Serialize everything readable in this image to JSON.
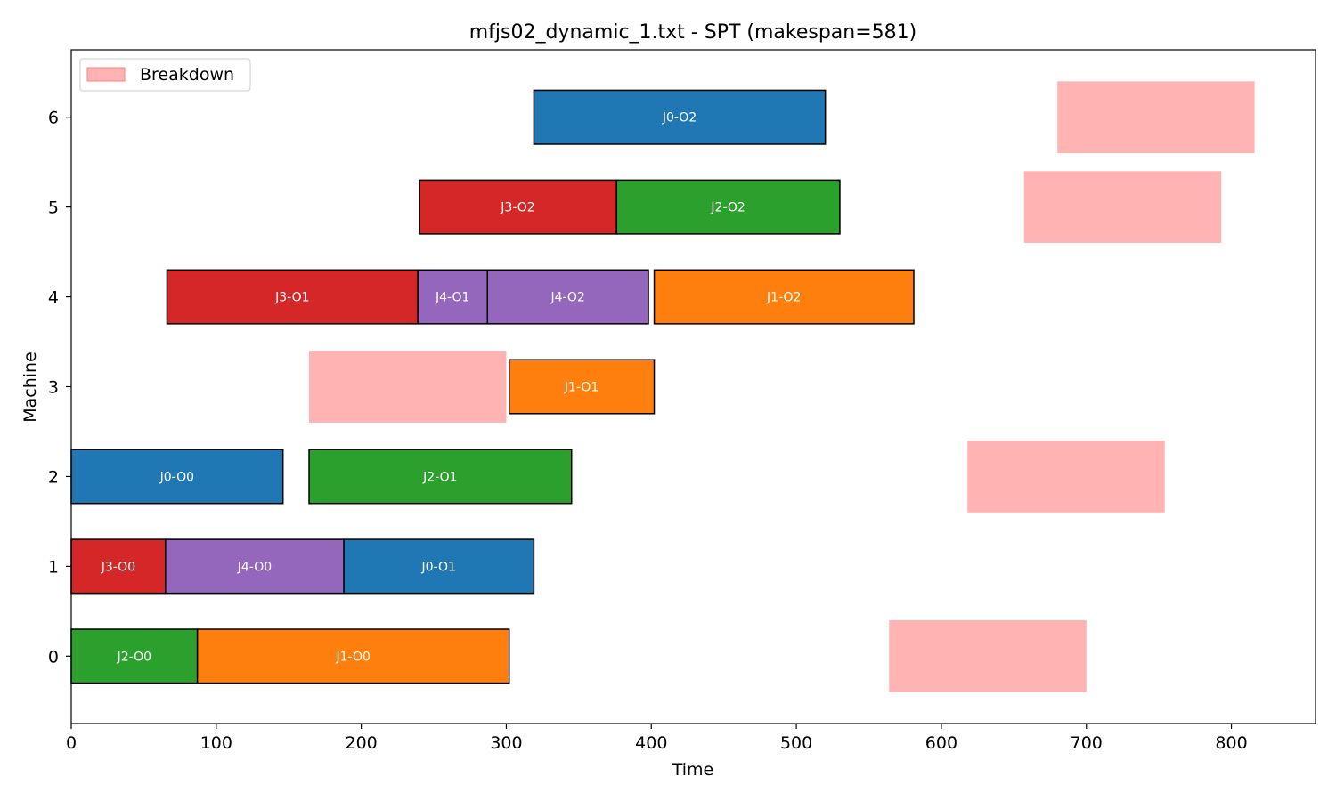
{
  "chart_data": {
    "type": "gantt",
    "title": "mfjs02_dynamic_1.txt - SPT (makespan=581)",
    "xlabel": "Time",
    "ylabel": "Machine",
    "xlim": [
      0,
      858
    ],
    "ylim": [
      -0.75,
      6.75
    ],
    "xticks": [
      0,
      100,
      200,
      300,
      400,
      500,
      600,
      700,
      800
    ],
    "yticks": [
      0,
      1,
      2,
      3,
      4,
      5,
      6
    ],
    "grid": false,
    "legend": {
      "placement": "top-left",
      "entries": [
        {
          "label": "Breakdown",
          "color": "#ffb3b3"
        }
      ]
    },
    "job_colors": {
      "J0": "#1f77b4",
      "J1": "#ff7f0e",
      "J2": "#2ca02c",
      "J3": "#d62728",
      "J4": "#9467bd"
    },
    "breakdown_color": "#ffb3b3",
    "operations": [
      {
        "machine": 0,
        "start": 0,
        "end": 87,
        "job": "J2",
        "label": "J2-O0"
      },
      {
        "machine": 0,
        "start": 87,
        "end": 302,
        "job": "J1",
        "label": "J1-O0"
      },
      {
        "machine": 1,
        "start": 0,
        "end": 65,
        "job": "J3",
        "label": "J3-O0"
      },
      {
        "machine": 1,
        "start": 65,
        "end": 188,
        "job": "J4",
        "label": "J4-O0"
      },
      {
        "machine": 1,
        "start": 188,
        "end": 319,
        "job": "J0",
        "label": "J0-O1"
      },
      {
        "machine": 2,
        "start": 0,
        "end": 146,
        "job": "J0",
        "label": "J0-O0"
      },
      {
        "machine": 2,
        "start": 164,
        "end": 345,
        "job": "J2",
        "label": "J2-O1"
      },
      {
        "machine": 3,
        "start": 302,
        "end": 402,
        "job": "J1",
        "label": "J1-O1"
      },
      {
        "machine": 4,
        "start": 66,
        "end": 239,
        "job": "J3",
        "label": "J3-O1"
      },
      {
        "machine": 4,
        "start": 239,
        "end": 287,
        "job": "J4",
        "label": "J4-O1"
      },
      {
        "machine": 4,
        "start": 287,
        "end": 398,
        "job": "J4",
        "label": "J4-O2"
      },
      {
        "machine": 4,
        "start": 402,
        "end": 581,
        "job": "J1",
        "label": "J1-O2"
      },
      {
        "machine": 5,
        "start": 240,
        "end": 376,
        "job": "J3",
        "label": "J3-O2"
      },
      {
        "machine": 5,
        "start": 376,
        "end": 530,
        "job": "J2",
        "label": "J2-O2"
      },
      {
        "machine": 6,
        "start": 319,
        "end": 520,
        "job": "J0",
        "label": "J0-O2"
      }
    ],
    "breakdowns": [
      {
        "machine": 0,
        "start": 564,
        "end": 700
      },
      {
        "machine": 2,
        "start": 618,
        "end": 754
      },
      {
        "machine": 3,
        "start": 164,
        "end": 300
      },
      {
        "machine": 5,
        "start": 657,
        "end": 793
      },
      {
        "machine": 6,
        "start": 680,
        "end": 816
      }
    ]
  }
}
